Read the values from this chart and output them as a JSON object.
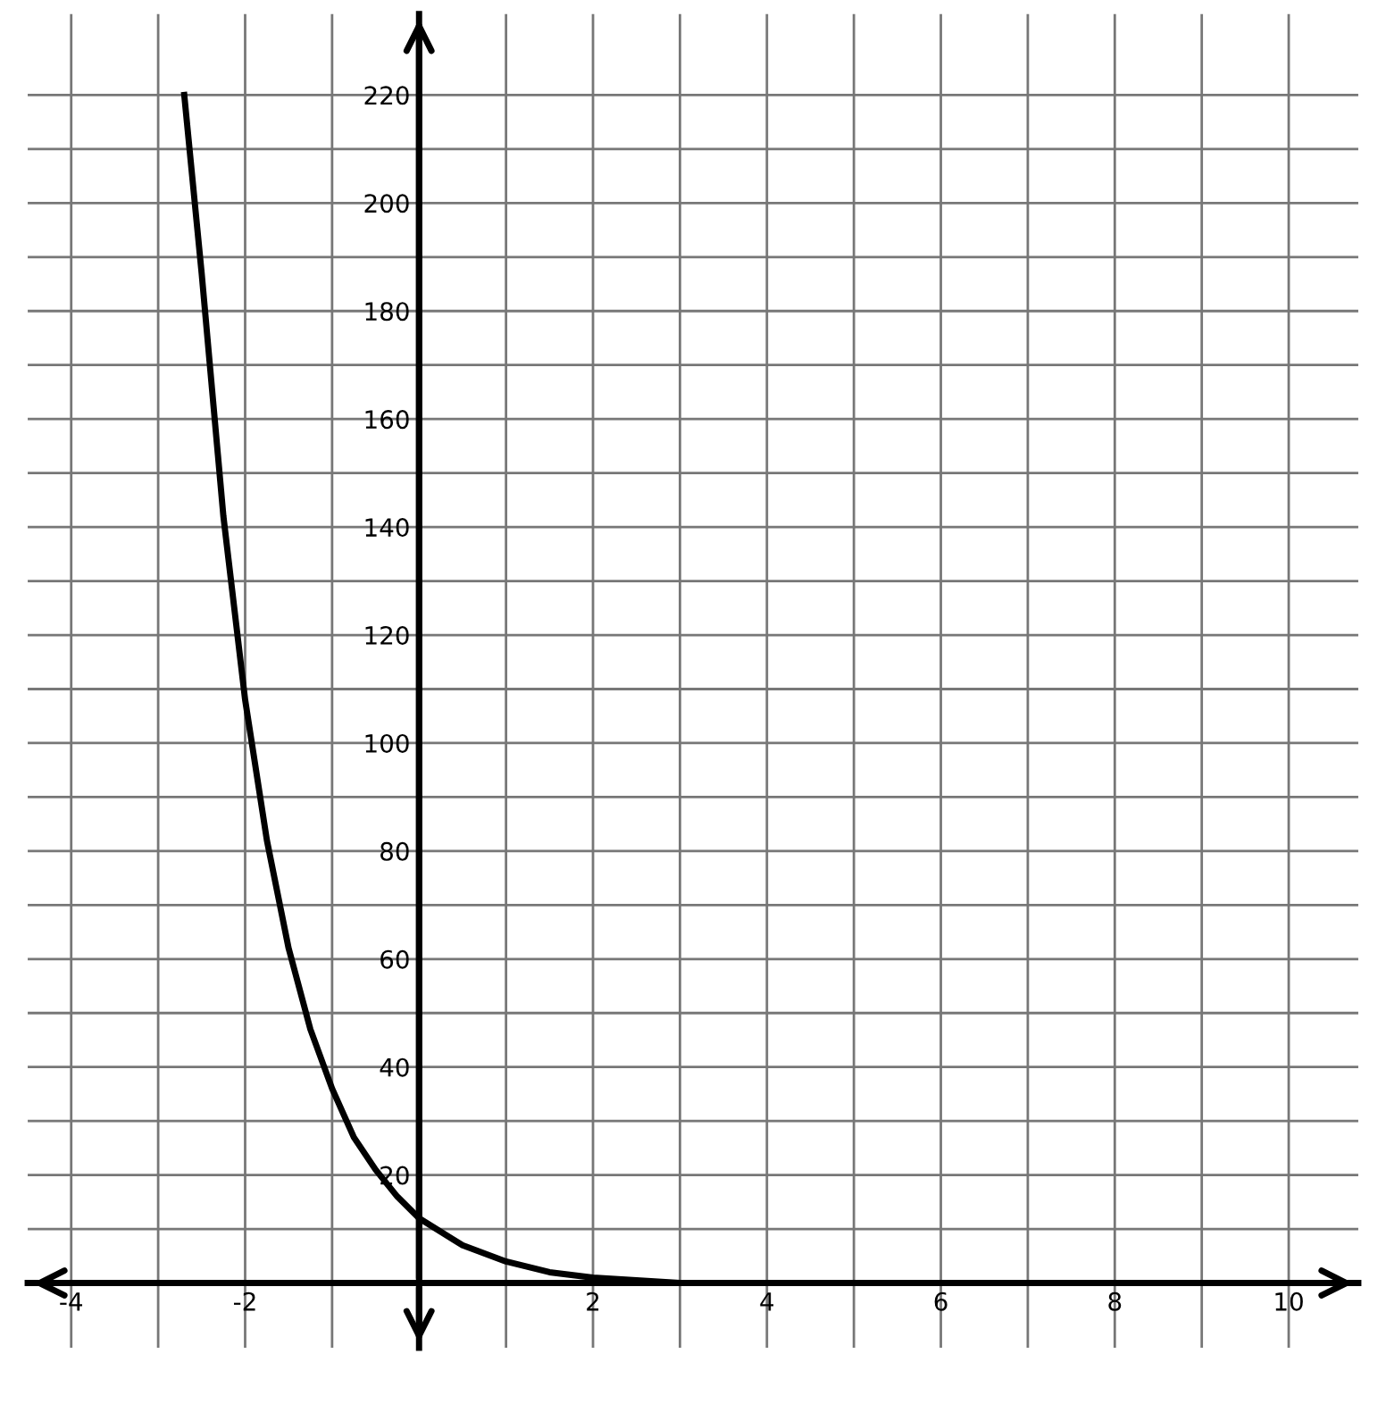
{
  "chart_data": {
    "type": "line",
    "series": [
      {
        "color": "#000000",
        "x": [
          -2.7,
          -2.5,
          -2.25,
          -2,
          -1.75,
          -1.5,
          -1.25,
          -1,
          -0.75,
          -0.5,
          -0.25,
          0,
          0.5,
          1,
          1.5,
          2,
          3,
          4,
          6,
          8,
          10
        ],
        "values": [
          220,
          187,
          142,
          108,
          82,
          62,
          47,
          36,
          27,
          21,
          16,
          12,
          7,
          4,
          2,
          1,
          0,
          0,
          0,
          0,
          0
        ]
      }
    ],
    "xlim": [
      -4.5,
      10.8
    ],
    "ylim": [
      -12,
      235
    ],
    "xticks": [
      -4,
      {
        "value": -3,
        "label": null
      },
      -2,
      {
        "value": -1,
        "label": null
      },
      {
        "value": 0,
        "label": null
      },
      {
        "value": 1,
        "label": null
      },
      2,
      {
        "value": 3,
        "label": null
      },
      4,
      {
        "value": 5,
        "label": null
      },
      6,
      {
        "value": 7,
        "label": null
      },
      8,
      {
        "value": 9,
        "label": null
      },
      10
    ],
    "yticks": [
      {
        "value": 10,
        "label": null
      },
      20,
      {
        "value": 30,
        "label": null
      },
      40,
      {
        "value": 50,
        "label": null
      },
      60,
      {
        "value": 70,
        "label": null
      },
      80,
      {
        "value": 90,
        "label": null
      },
      100,
      {
        "value": 110,
        "label": null
      },
      120,
      {
        "value": 130,
        "label": null
      },
      140,
      {
        "value": 150,
        "label": null
      },
      160,
      {
        "value": 170,
        "label": null
      },
      180,
      {
        "value": 190,
        "label": null
      },
      200,
      {
        "value": 210,
        "label": null
      },
      220
    ],
    "grid": true,
    "marker": "none",
    "line_style": "solid"
  }
}
